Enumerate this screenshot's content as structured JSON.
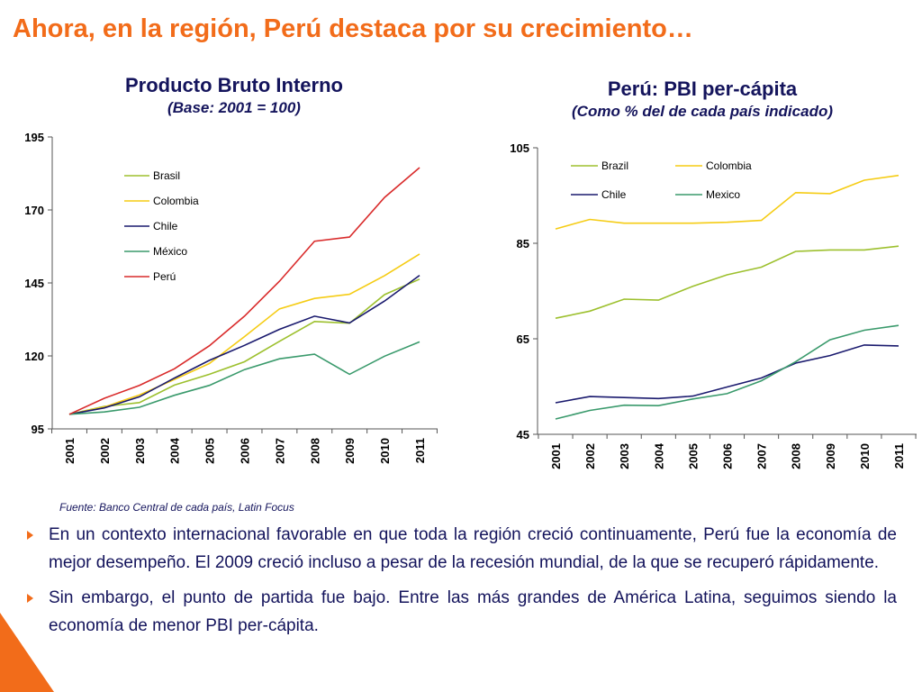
{
  "header": {
    "title": "Ahora, en la región, Perú destaca por su crecimiento…"
  },
  "colors": {
    "accent": "#f26c1a",
    "text": "#14145c"
  },
  "chart_data": [
    {
      "type": "line",
      "title": "Producto Bruto Interno",
      "subtitle": "(Base: 2001 = 100)",
      "xlabel": "",
      "ylabel": "",
      "ylim": [
        95,
        195
      ],
      "yticks": [
        95,
        120,
        145,
        170,
        195
      ],
      "grid": false,
      "legend_position": "top-left",
      "categories": [
        "2001",
        "2002",
        "2003",
        "2004",
        "2005",
        "2006",
        "2007",
        "2008",
        "2009",
        "2010",
        "2011"
      ],
      "series": [
        {
          "name": "Brasil",
          "color": "#9dc02e",
          "values": [
            100,
            102.7,
            104,
            110,
            113.7,
            118,
            125,
            131.8,
            131.2,
            141,
            146.3
          ]
        },
        {
          "name": "Colombia",
          "color": "#f5cc14",
          "values": [
            100,
            102.5,
            106.6,
            111.9,
            117.4,
            126.6,
            136.1,
            139.7,
            141.1,
            147.5,
            154.9
          ]
        },
        {
          "name": "Chile",
          "color": "#1a1a6e",
          "values": [
            100,
            102.2,
            106,
            112.4,
            118.5,
            123.6,
            129.1,
            133.6,
            131.3,
            138.8,
            147.6
          ]
        },
        {
          "name": "México",
          "color": "#3a9a6c",
          "values": [
            100,
            100.8,
            102.4,
            106.5,
            109.9,
            115.3,
            119,
            120.6,
            113.7,
            119.9,
            124.8
          ]
        },
        {
          "name": "Perú",
          "color": "#d92b2b",
          "values": [
            100,
            105.5,
            109.9,
            115.6,
            123.5,
            133.6,
            145.6,
            159.3,
            160.7,
            174.3,
            184.5
          ]
        }
      ]
    },
    {
      "type": "line",
      "title": "Perú: PBI per-cápita",
      "subtitle": "(Como % del de cada país indicado)",
      "xlabel": "",
      "ylabel": "",
      "ylim": [
        45,
        105
      ],
      "yticks": [
        45,
        65,
        85,
        105
      ],
      "grid": false,
      "legend_position": "top",
      "categories": [
        "2001",
        "2002",
        "2003",
        "2004",
        "2005",
        "2006",
        "2007",
        "2008",
        "2009",
        "2010",
        "2011"
      ],
      "series": [
        {
          "name": "Brazil",
          "color": "#9dc02e",
          "values": [
            69.3,
            70.8,
            73.3,
            73.1,
            76,
            78.4,
            80,
            83.3,
            83.6,
            83.6,
            84.4
          ]
        },
        {
          "name": "Colombia",
          "color": "#f5cc14",
          "values": [
            88,
            90,
            89.2,
            89.2,
            89.2,
            89.4,
            89.8,
            95.6,
            95.4,
            98.2,
            99.2
          ]
        },
        {
          "name": "Chile",
          "color": "#1a1a6e",
          "values": [
            51.6,
            52.9,
            52.7,
            52.5,
            53,
            54.9,
            56.8,
            59.9,
            61.5,
            63.7,
            63.5
          ]
        },
        {
          "name": "Mexico",
          "color": "#3a9a6c",
          "values": [
            48.2,
            50,
            51.1,
            51,
            52.4,
            53.5,
            56.2,
            60.2,
            64.8,
            66.8,
            67.8
          ]
        }
      ]
    }
  ],
  "source": "Fuente: Banco Central de cada país, Latin Focus",
  "bullets": [
    "En un contexto internacional favorable en que toda la región creció continuamente, Perú fue la economía de mejor desempeño. El 2009 creció incluso a pesar de la recesión mundial, de la que se recuperó rápidamente.",
    "Sin embargo, el punto de partida fue bajo. Entre las más grandes de América Latina, seguimos siendo la economía de menor PBI per-cápita."
  ]
}
